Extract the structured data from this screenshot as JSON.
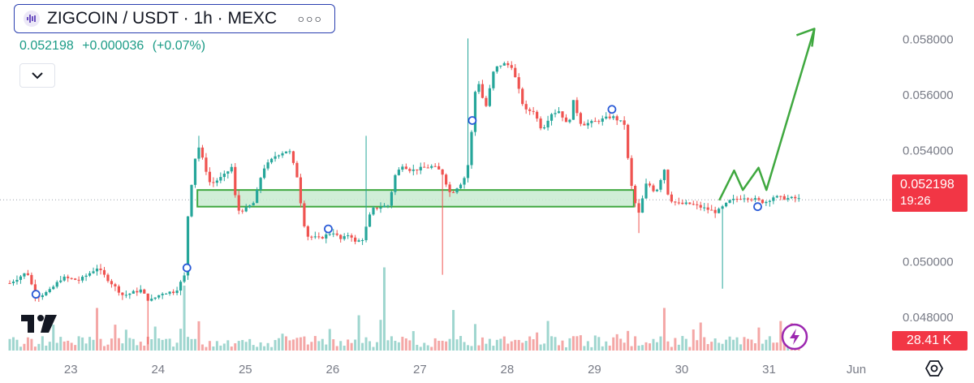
{
  "header": {
    "symbol_title": "ZIGCOIN / USDT · 1h · MEXC",
    "last_price": "0.052198",
    "change": "+0.000036",
    "change_pct": "(+0.07%)"
  },
  "price_tag": {
    "price": "0.052198",
    "countdown": "19:26"
  },
  "volume_tag": "28.41 K",
  "colors": {
    "up": "#26a69a",
    "down": "#ef5350",
    "zone_fill": "#c8ebd0",
    "zone_stroke": "#3fa83f",
    "arrow": "#3fa83f",
    "tag_red": "#f23645"
  },
  "icons": [
    "more-icon",
    "chevron-down-icon",
    "tradingview-logo",
    "lightning-icon",
    "settings-icon"
  ],
  "chart_data": {
    "type": "candlestick",
    "title": "ZIGCOIN / USDT · 1h · MEXC",
    "y_ticks": [
      "0.058000",
      "0.056000",
      "0.054000",
      "0.050000",
      "0.048000"
    ],
    "x_ticks": [
      "23",
      "24",
      "25",
      "26",
      "27",
      "28",
      "29",
      "30",
      "31",
      "Jun"
    ],
    "x_range": [
      22.3,
      32.4
    ],
    "y_range": [
      0.0466,
      0.0588
    ],
    "last_price": 0.052198,
    "zone": {
      "x_start": 24.45,
      "x_end": 29.45,
      "y_low": 0.05195,
      "y_high": 0.05255
    },
    "projection_arrow": [
      [
        30.43,
        0.05218
      ],
      [
        30.6,
        0.05325
      ],
      [
        30.7,
        0.05255
      ],
      [
        30.88,
        0.05335
      ],
      [
        30.97,
        0.05255
      ],
      [
        31.52,
        0.05835
      ]
    ],
    "markers": [
      [
        22.6,
        0.0488
      ],
      [
        24.33,
        0.04975
      ],
      [
        25.95,
        0.05115
      ],
      [
        27.6,
        0.05505
      ],
      [
        29.2,
        0.05545
      ],
      [
        30.87,
        0.05195
      ]
    ],
    "price_path": [
      [
        22.3,
        0.0492
      ],
      [
        22.5,
        0.0496
      ],
      [
        22.6,
        0.0487
      ],
      [
        22.75,
        0.0489
      ],
      [
        22.9,
        0.0494
      ],
      [
        23.1,
        0.0493
      ],
      [
        23.3,
        0.04975
      ],
      [
        23.45,
        0.04925
      ],
      [
        23.6,
        0.04875
      ],
      [
        23.8,
        0.04895
      ],
      [
        23.9,
        0.04855
      ],
      [
        24.05,
        0.04885
      ],
      [
        24.2,
        0.0489
      ],
      [
        24.3,
        0.04945
      ],
      [
        24.35,
        0.05205
      ],
      [
        24.45,
        0.05425
      ],
      [
        24.6,
        0.05275
      ],
      [
        24.75,
        0.05305
      ],
      [
        24.85,
        0.0534
      ],
      [
        24.9,
        0.0518
      ],
      [
        25.0,
        0.05185
      ],
      [
        25.1,
        0.0521
      ],
      [
        25.2,
        0.0533
      ],
      [
        25.35,
        0.0538
      ],
      [
        25.5,
        0.054
      ],
      [
        25.6,
        0.05295
      ],
      [
        25.65,
        0.0517
      ],
      [
        25.7,
        0.0509
      ],
      [
        25.85,
        0.0508
      ],
      [
        26.0,
        0.05105
      ],
      [
        26.1,
        0.05075
      ],
      [
        26.2,
        0.051
      ],
      [
        26.25,
        0.05065
      ],
      [
        26.35,
        0.0508
      ],
      [
        26.4,
        0.0514
      ],
      [
        26.45,
        0.05185
      ],
      [
        26.55,
        0.05195
      ],
      [
        26.65,
        0.052
      ],
      [
        26.7,
        0.053
      ],
      [
        26.8,
        0.05345
      ],
      [
        26.9,
        0.05325
      ],
      [
        27.05,
        0.05335
      ],
      [
        27.15,
        0.0534
      ],
      [
        27.25,
        0.0532
      ],
      [
        27.35,
        0.0524
      ],
      [
        27.5,
        0.0529
      ],
      [
        27.55,
        0.05345
      ],
      [
        27.6,
        0.05485
      ],
      [
        27.65,
        0.0567
      ],
      [
        27.75,
        0.05545
      ],
      [
        27.85,
        0.0569
      ],
      [
        27.95,
        0.0571
      ],
      [
        28.05,
        0.057
      ],
      [
        28.1,
        0.0565
      ],
      [
        28.2,
        0.0554
      ],
      [
        28.3,
        0.0554
      ],
      [
        28.4,
        0.0547
      ],
      [
        28.5,
        0.0553
      ],
      [
        28.6,
        0.0554
      ],
      [
        28.7,
        0.0548
      ],
      [
        28.75,
        0.0558
      ],
      [
        28.85,
        0.0549
      ],
      [
        29.0,
        0.055
      ],
      [
        29.2,
        0.0552
      ],
      [
        29.35,
        0.0549
      ],
      [
        29.4,
        0.05305
      ],
      [
        29.45,
        0.0523
      ],
      [
        29.5,
        0.0516
      ],
      [
        29.6,
        0.05285
      ],
      [
        29.7,
        0.05245
      ],
      [
        29.8,
        0.0533
      ],
      [
        29.85,
        0.05225
      ],
      [
        29.95,
        0.05205
      ],
      [
        30.1,
        0.05205
      ],
      [
        30.2,
        0.05195
      ],
      [
        30.3,
        0.05185
      ],
      [
        30.4,
        0.05175
      ],
      [
        30.55,
        0.05215
      ],
      [
        30.7,
        0.0523
      ],
      [
        30.8,
        0.05225
      ],
      [
        30.95,
        0.0521
      ],
      [
        31.05,
        0.0523
      ],
      [
        31.2,
        0.05225
      ],
      [
        31.3,
        0.05225
      ],
      [
        31.38,
        0.0522
      ]
    ],
    "volume_peaks": [
      [
        24.3,
        1.0
      ],
      [
        26.6,
        1.45
      ],
      [
        23.3,
        0.45
      ],
      [
        29.8,
        0.45
      ],
      [
        27.4,
        0.4
      ]
    ]
  }
}
